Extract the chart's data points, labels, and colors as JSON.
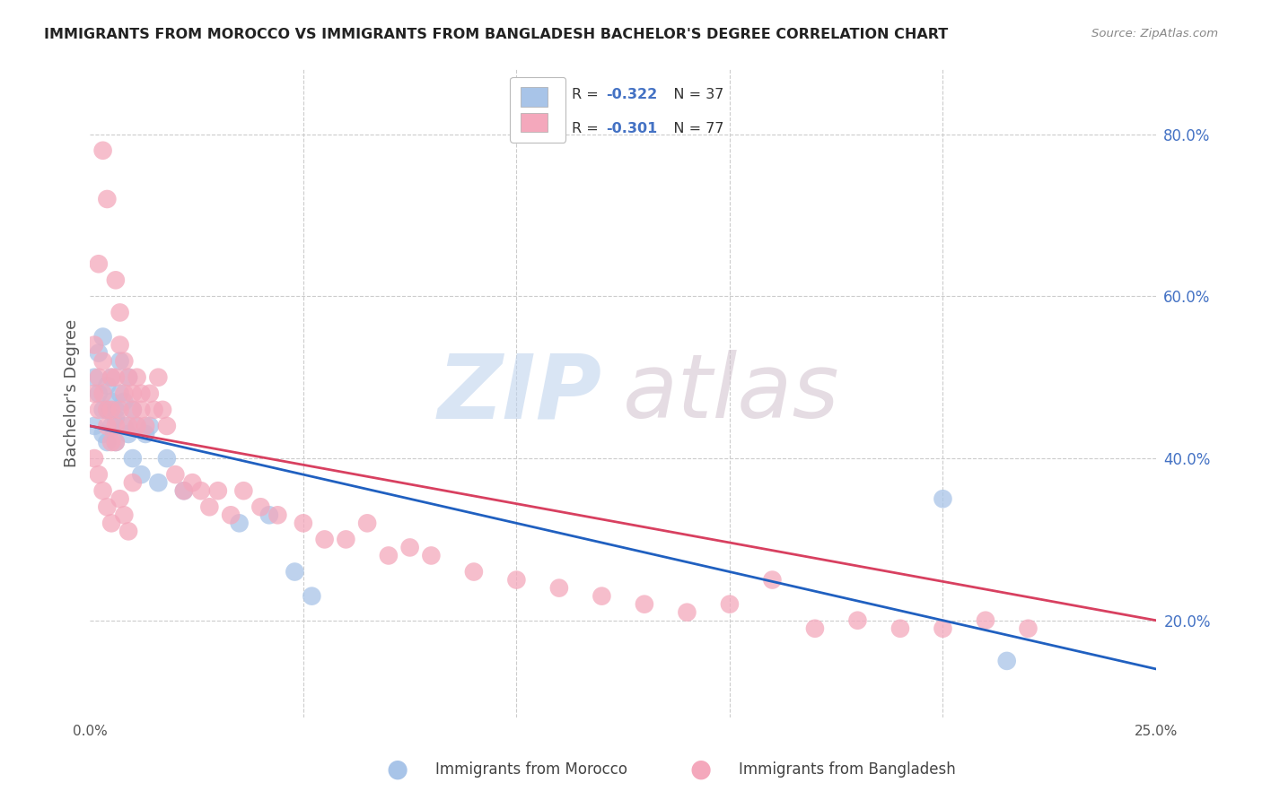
{
  "title": "IMMIGRANTS FROM MOROCCO VS IMMIGRANTS FROM BANGLADESH BACHELOR'S DEGREE CORRELATION CHART",
  "source": "Source: ZipAtlas.com",
  "ylabel": "Bachelor's Degree",
  "right_yticks": [
    0.2,
    0.4,
    0.6,
    0.8
  ],
  "right_yticklabels": [
    "20.0%",
    "40.0%",
    "60.0%",
    "80.0%"
  ],
  "xlim": [
    0.0,
    0.25
  ],
  "ylim": [
    0.08,
    0.88
  ],
  "color_morocco": "#a8c4e8",
  "color_bangladesh": "#f4a8bc",
  "color_line_morocco": "#2060c0",
  "color_line_bangladesh": "#d84060",
  "color_grid": "#cccccc",
  "color_ytick_right": "#4472c4",
  "legend_label1": "Immigrants from Morocco",
  "legend_label2": "Immigrants from Bangladesh",
  "legend_r1_val": "-0.322",
  "legend_r2_val": "-0.301",
  "legend_n1": "37",
  "legend_n2": "77",
  "watermark_zip_color": "#c0d4ee",
  "watermark_atlas_color": "#d0c0cc",
  "morocco_x": [
    0.001,
    0.001,
    0.002,
    0.002,
    0.003,
    0.003,
    0.003,
    0.004,
    0.004,
    0.004,
    0.005,
    0.005,
    0.005,
    0.006,
    0.006,
    0.006,
    0.007,
    0.007,
    0.008,
    0.008,
    0.009,
    0.009,
    0.01,
    0.01,
    0.011,
    0.012,
    0.013,
    0.014,
    0.016,
    0.018,
    0.022,
    0.035,
    0.042,
    0.048,
    0.052,
    0.2,
    0.215
  ],
  "morocco_y": [
    0.44,
    0.5,
    0.53,
    0.48,
    0.46,
    0.43,
    0.55,
    0.46,
    0.42,
    0.49,
    0.44,
    0.47,
    0.5,
    0.45,
    0.42,
    0.46,
    0.48,
    0.52,
    0.44,
    0.47,
    0.5,
    0.43,
    0.46,
    0.4,
    0.44,
    0.38,
    0.43,
    0.44,
    0.37,
    0.4,
    0.36,
    0.32,
    0.33,
    0.26,
    0.23,
    0.35,
    0.15
  ],
  "bangladesh_x": [
    0.001,
    0.001,
    0.002,
    0.002,
    0.002,
    0.003,
    0.003,
    0.003,
    0.004,
    0.004,
    0.004,
    0.005,
    0.005,
    0.005,
    0.006,
    0.006,
    0.006,
    0.007,
    0.007,
    0.007,
    0.008,
    0.008,
    0.009,
    0.009,
    0.01,
    0.01,
    0.011,
    0.011,
    0.012,
    0.012,
    0.013,
    0.014,
    0.015,
    0.016,
    0.017,
    0.018,
    0.02,
    0.022,
    0.024,
    0.026,
    0.028,
    0.03,
    0.033,
    0.036,
    0.04,
    0.044,
    0.05,
    0.055,
    0.06,
    0.065,
    0.07,
    0.075,
    0.08,
    0.09,
    0.1,
    0.11,
    0.12,
    0.13,
    0.14,
    0.15,
    0.16,
    0.17,
    0.18,
    0.19,
    0.2,
    0.21,
    0.22,
    0.001,
    0.002,
    0.003,
    0.004,
    0.005,
    0.006,
    0.007,
    0.008,
    0.009,
    0.01
  ],
  "bangladesh_y": [
    0.48,
    0.54,
    0.5,
    0.46,
    0.64,
    0.52,
    0.48,
    0.78,
    0.46,
    0.72,
    0.44,
    0.5,
    0.46,
    0.42,
    0.5,
    0.62,
    0.44,
    0.58,
    0.46,
    0.54,
    0.52,
    0.48,
    0.5,
    0.44,
    0.48,
    0.46,
    0.44,
    0.5,
    0.46,
    0.48,
    0.44,
    0.48,
    0.46,
    0.5,
    0.46,
    0.44,
    0.38,
    0.36,
    0.37,
    0.36,
    0.34,
    0.36,
    0.33,
    0.36,
    0.34,
    0.33,
    0.32,
    0.3,
    0.3,
    0.32,
    0.28,
    0.29,
    0.28,
    0.26,
    0.25,
    0.24,
    0.23,
    0.22,
    0.21,
    0.22,
    0.25,
    0.19,
    0.2,
    0.19,
    0.19,
    0.2,
    0.19,
    0.4,
    0.38,
    0.36,
    0.34,
    0.32,
    0.42,
    0.35,
    0.33,
    0.31,
    0.37
  ],
  "line_morocco_x0": 0.0,
  "line_morocco_y0": 0.44,
  "line_morocco_x1": 0.25,
  "line_morocco_y1": 0.14,
  "line_bangladesh_x0": 0.0,
  "line_bangladesh_y0": 0.44,
  "line_bangladesh_x1": 0.25,
  "line_bangladesh_y1": 0.2
}
